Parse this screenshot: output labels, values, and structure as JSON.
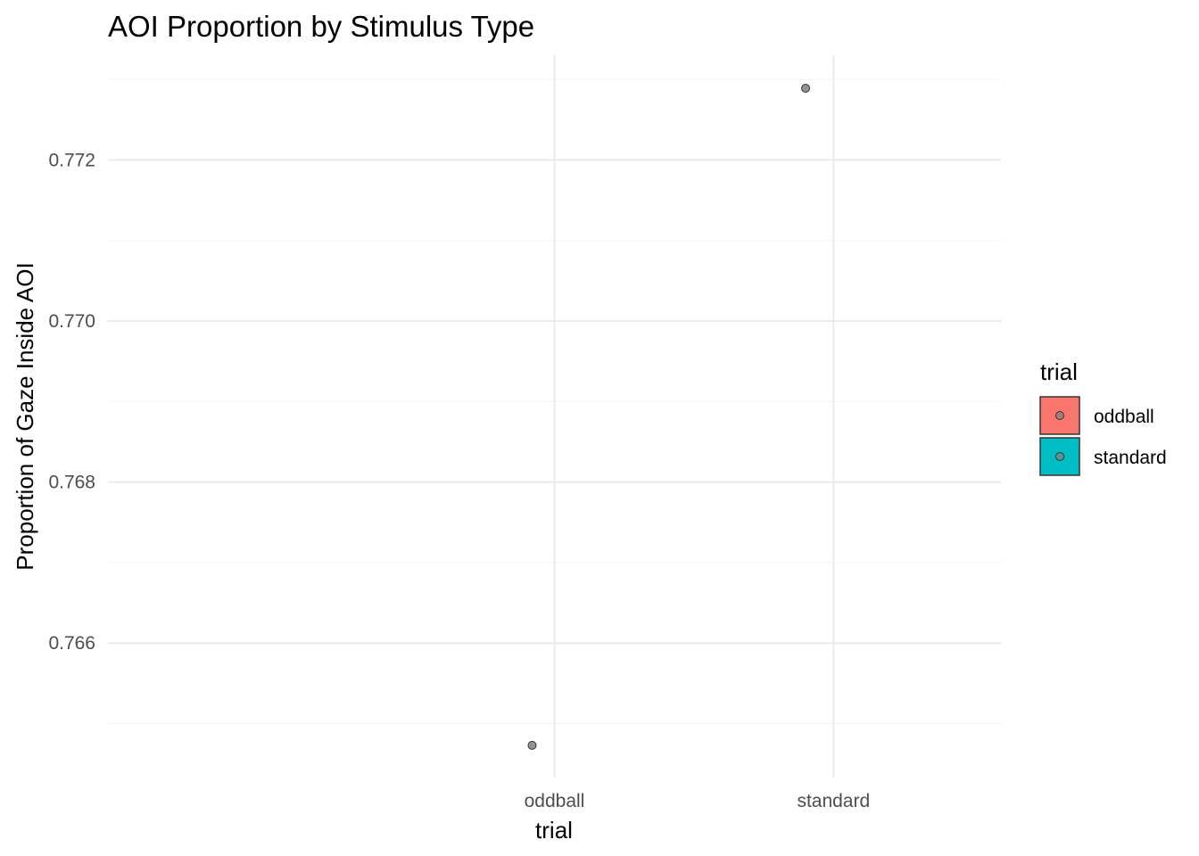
{
  "chart_data": {
    "type": "scatter",
    "title": "AOI Proportion by Stimulus Type",
    "xlabel": "trial",
    "ylabel": "Proportion of Gaze Inside AOI",
    "categories": [
      "oddball",
      "standard"
    ],
    "points": [
      {
        "category": "oddball",
        "x_jitter": -0.08,
        "value": 0.76473
      },
      {
        "category": "standard",
        "x_jitter": -0.1,
        "value": 0.77289
      }
    ],
    "ylim": [
      0.76433,
      0.7733
    ],
    "yticks": [
      0.766,
      0.768,
      0.77,
      0.772
    ],
    "ytick_labels": [
      "0.766",
      "0.768",
      "0.770",
      "0.772"
    ],
    "grid": true,
    "legend": {
      "title": "trial",
      "placement": "right",
      "entries": [
        {
          "label": "oddball",
          "color": "#F8766D"
        },
        {
          "label": "standard",
          "color": "#00BFC4"
        }
      ]
    },
    "point_color": "#808080"
  }
}
